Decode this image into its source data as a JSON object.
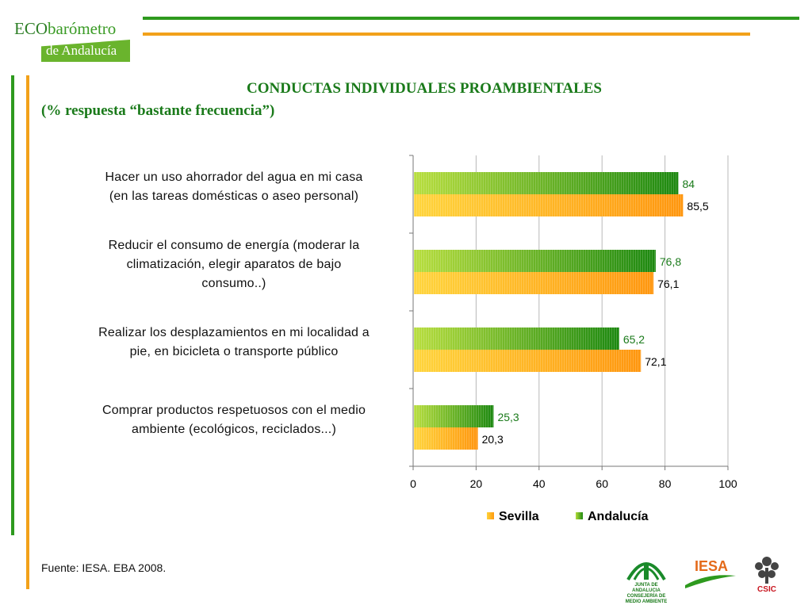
{
  "logo": {
    "eco": "ECO",
    "barometro": "barómetro",
    "region": "de Andalucía"
  },
  "title_line1": "CONDUCTAS INDIVIDUALES PROAMBIENTALES",
  "title_line2": "(% respuesta “bastante frecuencia”)",
  "source": "Fuente: IESA. EBA 2008.",
  "colors": {
    "green_accent": "#2e9a1e",
    "orange_accent": "#f2a11a",
    "title": "#1a7a1a",
    "sevilla_light": "#ffd33a",
    "sevilla_dark": "#ff9a10",
    "andalucia_light": "#b4dc3a",
    "andalucia_dark": "#1f8a12"
  },
  "footer_logos": {
    "junta": [
      "JUNTA DE ANDALUCIA",
      "CONSEJERÍA DE MEDIO AMBIENTE"
    ],
    "iesa": "IESA",
    "csic": "CSIC"
  },
  "chart_data": {
    "type": "bar",
    "orientation": "horizontal",
    "title": "CONDUCTAS INDIVIDUALES PROAMBIENTALES",
    "subtitle": "(% respuesta “bastante frecuencia”)",
    "xlim": [
      0,
      100
    ],
    "xticks": [
      "0",
      "20",
      "40",
      "60",
      "80",
      "100"
    ],
    "grid": true,
    "legend_position": "bottom",
    "categories": [
      [
        "Hacer un uso ahorrador del agua en mi casa",
        "(en las tareas domésticas o aseo personal)"
      ],
      [
        "Reducir el consumo de energía (moderar la",
        "climatización, elegir aparatos de bajo",
        "consumo..)"
      ],
      [
        "Realizar los desplazamientos en mi localidad a",
        "pie, en bicicleta o transporte público"
      ],
      [
        "Comprar productos respetuosos con el medio",
        "ambiente (ecológicos, reciclados...)"
      ]
    ],
    "series": [
      {
        "name": "Sevilla",
        "values": [
          85.5,
          76.1,
          72.1,
          20.3
        ],
        "labels": [
          "85,5",
          "76,1",
          "72,1",
          "20,3"
        ],
        "label_color": "#000000"
      },
      {
        "name": "Andalucía",
        "values": [
          84,
          76.8,
          65.2,
          25.3
        ],
        "labels": [
          "84",
          "76,8",
          "65,2",
          "25,3"
        ],
        "label_color": "#1a7a1a"
      }
    ]
  }
}
